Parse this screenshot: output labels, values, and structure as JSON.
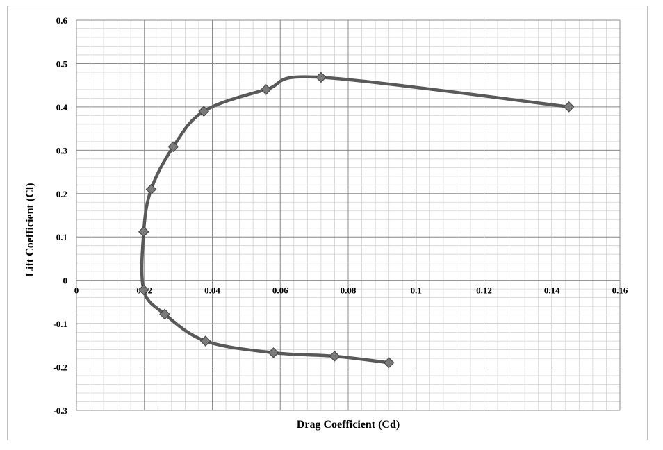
{
  "chart_data": {
    "type": "line",
    "title": "",
    "xlabel": "Drag Coefficient (Cd)",
    "ylabel": "Lift Coefficient (Cl)",
    "xlim": [
      0,
      0.16
    ],
    "ylim": [
      -0.3,
      0.6
    ],
    "x_ticks": [
      "0",
      "0.02",
      "0.04",
      "0.06",
      "0.08",
      "0.1",
      "0.12",
      "0.14",
      "0.16"
    ],
    "y_ticks": [
      "0.6",
      "0.5",
      "0.4",
      "0.3",
      "0.2",
      "0.1",
      "0",
      "-0.1",
      "-0.2",
      "-0.3"
    ],
    "grid": true,
    "legend": "none",
    "line_color": "#595959",
    "marker_color": "#7a7a7a",
    "series": [
      {
        "x": [
          0.092,
          0.076,
          0.058,
          0.038,
          0.026,
          0.0198,
          0.0198,
          0.022,
          0.0285,
          0.0375,
          0.0558,
          0.072,
          0.145
        ],
        "y": [
          -0.19,
          -0.175,
          -0.167,
          -0.14,
          -0.078,
          -0.022,
          0.112,
          0.21,
          0.308,
          0.39,
          0.44,
          0.468,
          0.4
        ]
      }
    ]
  }
}
